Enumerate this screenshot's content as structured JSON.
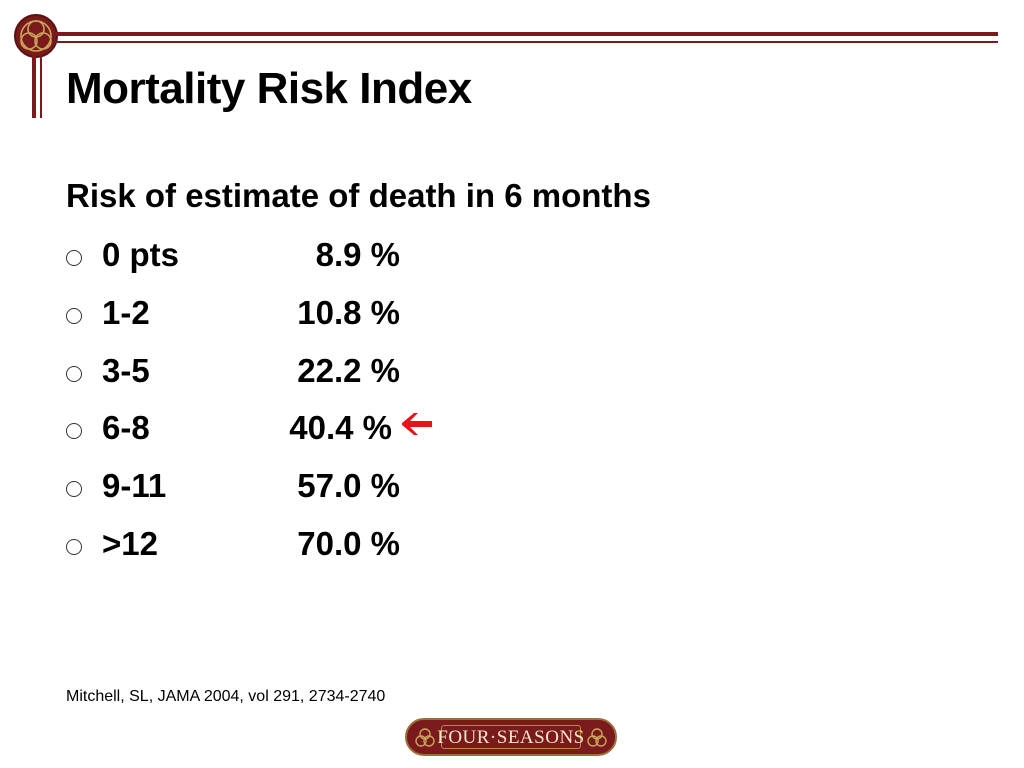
{
  "slide": {
    "title": "Mortality Risk Index",
    "subtitle": "Risk of estimate of death in 6 months",
    "rows": [
      {
        "points": "0 pts",
        "percent": "8.9 %",
        "highlight": false
      },
      {
        "points": "1-2",
        "percent": "10.8 %",
        "highlight": false
      },
      {
        "points": "3-5",
        "percent": "22.2 %",
        "highlight": false
      },
      {
        "points": "6-8",
        "percent": "40.4 %",
        "highlight": true
      },
      {
        "points": "9-11",
        "percent": "57.0 %",
        "highlight": false
      },
      {
        "points": ">12",
        "percent": "70.0 %",
        "highlight": false
      }
    ],
    "citation": "Mitchell, SL, JAMA 2004, vol 291, 2734-2740",
    "logo_text": "FOUR·SEASONS"
  },
  "icons": {
    "bullet": "hollow-circle-bullet-icon",
    "highlight_arrow": "left-arrow-icon",
    "emblem": "celtic-knot-emblem-icon"
  },
  "colors": {
    "accent": "#7a1a1c",
    "arrow": "#e8141b",
    "logo_gold": "#b88a4a"
  }
}
